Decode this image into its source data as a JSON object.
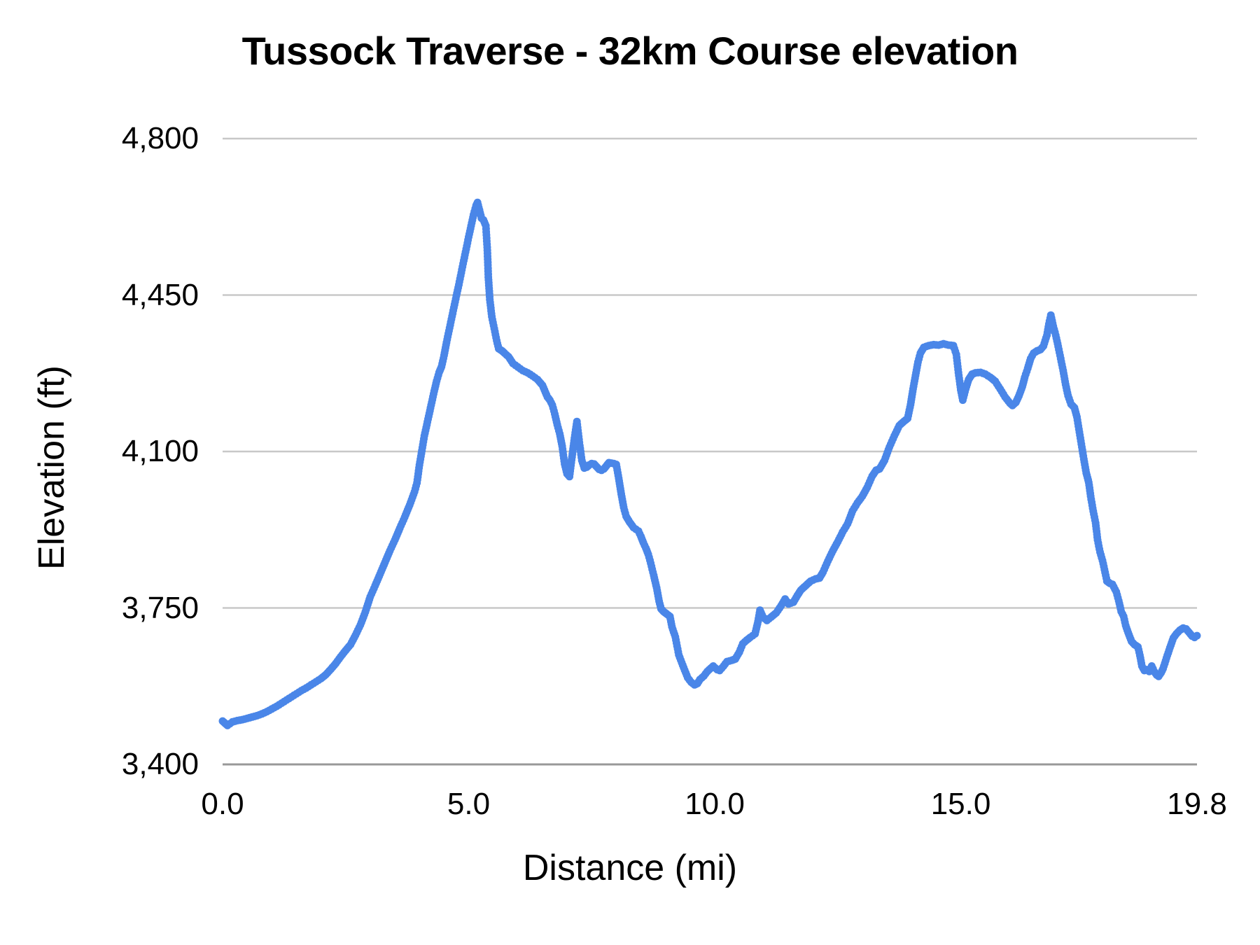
{
  "chart_data": {
    "type": "line",
    "title": "Tussock Traverse - 32km Course elevation",
    "xlabel": "Distance (mi)",
    "ylabel": "Elevation (ft)",
    "xlim": [
      0,
      19.8
    ],
    "ylim": [
      3400,
      4800
    ],
    "x_ticks": [
      0.0,
      5.0,
      10.0,
      15.0,
      19.8
    ],
    "x_tick_labels": [
      "0.0",
      "5.0",
      "10.0",
      "15.0",
      "19.8"
    ],
    "y_ticks": [
      3400,
      3750,
      4100,
      4450,
      4800
    ],
    "y_tick_labels": [
      "3,400",
      "3,750",
      "4,100",
      "4,450",
      "4,800"
    ],
    "grid": "horizontal",
    "legend": "none",
    "marker": "circle",
    "line_color": "#4a86e8",
    "grid_color": "#c8c8c8",
    "axis_color": "#989898",
    "text_color": "#000000",
    "series": [
      {
        "name": "Elevation",
        "points": [
          [
            0.0,
            3497
          ],
          [
            0.05,
            3492
          ],
          [
            0.1,
            3487
          ],
          [
            0.15,
            3491
          ],
          [
            0.2,
            3495
          ],
          [
            0.3,
            3498
          ],
          [
            0.4,
            3500
          ],
          [
            0.5,
            3503
          ],
          [
            0.6,
            3506
          ],
          [
            0.7,
            3509
          ],
          [
            0.8,
            3513
          ],
          [
            0.9,
            3518
          ],
          [
            1.0,
            3524
          ],
          [
            1.1,
            3530
          ],
          [
            1.2,
            3537
          ],
          [
            1.3,
            3544
          ],
          [
            1.4,
            3551
          ],
          [
            1.5,
            3558
          ],
          [
            1.6,
            3565
          ],
          [
            1.7,
            3571
          ],
          [
            1.8,
            3578
          ],
          [
            1.9,
            3585
          ],
          [
            2.0,
            3592
          ],
          [
            2.1,
            3601
          ],
          [
            2.2,
            3613
          ],
          [
            2.3,
            3626
          ],
          [
            2.4,
            3641
          ],
          [
            2.5,
            3655
          ],
          [
            2.6,
            3668
          ],
          [
            2.7,
            3689
          ],
          [
            2.8,
            3712
          ],
          [
            2.9,
            3741
          ],
          [
            3.0,
            3775
          ],
          [
            3.1,
            3800
          ],
          [
            3.2,
            3826
          ],
          [
            3.3,
            3852
          ],
          [
            3.4,
            3878
          ],
          [
            3.5,
            3902
          ],
          [
            3.6,
            3928
          ],
          [
            3.7,
            3953
          ],
          [
            3.8,
            3980
          ],
          [
            3.9,
            4010
          ],
          [
            3.95,
            4030
          ],
          [
            4.0,
            4070
          ],
          [
            4.05,
            4102
          ],
          [
            4.1,
            4135
          ],
          [
            4.15,
            4160
          ],
          [
            4.2,
            4185
          ],
          [
            4.25,
            4210
          ],
          [
            4.3,
            4235
          ],
          [
            4.35,
            4258
          ],
          [
            4.4,
            4277
          ],
          [
            4.45,
            4290
          ],
          [
            4.5,
            4315
          ],
          [
            4.55,
            4344
          ],
          [
            4.6,
            4370
          ],
          [
            4.65,
            4396
          ],
          [
            4.7,
            4422
          ],
          [
            4.75,
            4448
          ],
          [
            4.8,
            4473
          ],
          [
            4.85,
            4500
          ],
          [
            4.9,
            4527
          ],
          [
            4.95,
            4553
          ],
          [
            5.0,
            4580
          ],
          [
            5.05,
            4605
          ],
          [
            5.1,
            4630
          ],
          [
            5.15,
            4650
          ],
          [
            5.18,
            4657
          ],
          [
            5.22,
            4640
          ],
          [
            5.26,
            4622
          ],
          [
            5.3,
            4618
          ],
          [
            5.35,
            4605
          ],
          [
            5.38,
            4550
          ],
          [
            5.4,
            4490
          ],
          [
            5.43,
            4440
          ],
          [
            5.47,
            4402
          ],
          [
            5.52,
            4375
          ],
          [
            5.57,
            4348
          ],
          [
            5.61,
            4330
          ],
          [
            5.68,
            4325
          ],
          [
            5.73,
            4320
          ],
          [
            5.81,
            4312
          ],
          [
            5.9,
            4297
          ],
          [
            6.0,
            4289
          ],
          [
            6.1,
            4281
          ],
          [
            6.2,
            4276
          ],
          [
            6.3,
            4269
          ],
          [
            6.4,
            4261
          ],
          [
            6.5,
            4248
          ],
          [
            6.6,
            4222
          ],
          [
            6.65,
            4215
          ],
          [
            6.7,
            4204
          ],
          [
            6.75,
            4184
          ],
          [
            6.8,
            4160
          ],
          [
            6.85,
            4140
          ],
          [
            6.9,
            4112
          ],
          [
            6.95,
            4072
          ],
          [
            7.0,
            4050
          ],
          [
            7.05,
            4044
          ],
          [
            7.1,
            4088
          ],
          [
            7.15,
            4130
          ],
          [
            7.2,
            4167
          ],
          [
            7.25,
            4120
          ],
          [
            7.3,
            4080
          ],
          [
            7.35,
            4063
          ],
          [
            7.4,
            4065
          ],
          [
            7.45,
            4070
          ],
          [
            7.5,
            4073
          ],
          [
            7.55,
            4072
          ],
          [
            7.6,
            4066
          ],
          [
            7.65,
            4060
          ],
          [
            7.7,
            4058
          ],
          [
            7.75,
            4061
          ],
          [
            7.8,
            4068
          ],
          [
            7.85,
            4075
          ],
          [
            7.9,
            4074
          ],
          [
            7.95,
            4073
          ],
          [
            8.0,
            4071
          ],
          [
            8.05,
            4040
          ],
          [
            8.1,
            4005
          ],
          [
            8.15,
            3975
          ],
          [
            8.2,
            3955
          ],
          [
            8.27,
            3942
          ],
          [
            8.35,
            3930
          ],
          [
            8.45,
            3922
          ],
          [
            8.5,
            3910
          ],
          [
            8.55,
            3896
          ],
          [
            8.6,
            3884
          ],
          [
            8.65,
            3870
          ],
          [
            8.7,
            3850
          ],
          [
            8.76,
            3823
          ],
          [
            8.82,
            3795
          ],
          [
            8.87,
            3765
          ],
          [
            8.91,
            3748
          ],
          [
            8.96,
            3742
          ],
          [
            9.02,
            3737
          ],
          [
            9.09,
            3731
          ],
          [
            9.13,
            3708
          ],
          [
            9.2,
            3685
          ],
          [
            9.27,
            3645
          ],
          [
            9.35,
            3622
          ],
          [
            9.45,
            3594
          ],
          [
            9.52,
            3584
          ],
          [
            9.59,
            3578
          ],
          [
            9.65,
            3581
          ],
          [
            9.7,
            3590
          ],
          [
            9.78,
            3598
          ],
          [
            9.85,
            3608
          ],
          [
            9.92,
            3615
          ],
          [
            9.97,
            3620
          ],
          [
            10.05,
            3612
          ],
          [
            10.1,
            3610
          ],
          [
            10.18,
            3620
          ],
          [
            10.25,
            3630
          ],
          [
            10.35,
            3633
          ],
          [
            10.42,
            3636
          ],
          [
            10.5,
            3651
          ],
          [
            10.57,
            3670
          ],
          [
            10.65,
            3678
          ],
          [
            10.72,
            3684
          ],
          [
            10.82,
            3692
          ],
          [
            10.88,
            3720
          ],
          [
            10.92,
            3745
          ],
          [
            10.98,
            3730
          ],
          [
            11.06,
            3722
          ],
          [
            11.15,
            3730
          ],
          [
            11.25,
            3739
          ],
          [
            11.35,
            3755
          ],
          [
            11.43,
            3770
          ],
          [
            11.5,
            3759
          ],
          [
            11.6,
            3763
          ],
          [
            11.68,
            3778
          ],
          [
            11.75,
            3790
          ],
          [
            11.85,
            3800
          ],
          [
            11.95,
            3810
          ],
          [
            12.05,
            3815
          ],
          [
            12.13,
            3817
          ],
          [
            12.2,
            3830
          ],
          [
            12.3,
            3855
          ],
          [
            12.4,
            3878
          ],
          [
            12.5,
            3898
          ],
          [
            12.6,
            3920
          ],
          [
            12.7,
            3938
          ],
          [
            12.8,
            3967
          ],
          [
            12.9,
            3985
          ],
          [
            13.0,
            4000
          ],
          [
            13.1,
            4020
          ],
          [
            13.2,
            4045
          ],
          [
            13.28,
            4058
          ],
          [
            13.35,
            4061
          ],
          [
            13.45,
            4080
          ],
          [
            13.55,
            4110
          ],
          [
            13.65,
            4135
          ],
          [
            13.75,
            4158
          ],
          [
            13.85,
            4168
          ],
          [
            13.92,
            4174
          ],
          [
            13.98,
            4205
          ],
          [
            14.03,
            4240
          ],
          [
            14.08,
            4270
          ],
          [
            14.13,
            4300
          ],
          [
            14.18,
            4320
          ],
          [
            14.25,
            4333
          ],
          [
            14.35,
            4337
          ],
          [
            14.45,
            4339
          ],
          [
            14.55,
            4338
          ],
          [
            14.65,
            4341
          ],
          [
            14.75,
            4338
          ],
          [
            14.85,
            4337
          ],
          [
            14.91,
            4317
          ],
          [
            14.96,
            4270
          ],
          [
            15.0,
            4238
          ],
          [
            15.04,
            4215
          ],
          [
            15.1,
            4240
          ],
          [
            15.16,
            4261
          ],
          [
            15.23,
            4273
          ],
          [
            15.3,
            4276
          ],
          [
            15.4,
            4277
          ],
          [
            15.5,
            4273
          ],
          [
            15.6,
            4266
          ],
          [
            15.7,
            4257
          ],
          [
            15.8,
            4240
          ],
          [
            15.9,
            4222
          ],
          [
            16.0,
            4208
          ],
          [
            16.05,
            4203
          ],
          [
            16.12,
            4210
          ],
          [
            16.18,
            4224
          ],
          [
            16.25,
            4245
          ],
          [
            16.3,
            4266
          ],
          [
            16.36,
            4286
          ],
          [
            16.42,
            4308
          ],
          [
            16.48,
            4320
          ],
          [
            16.55,
            4325
          ],
          [
            16.62,
            4328
          ],
          [
            16.68,
            4336
          ],
          [
            16.75,
            4360
          ],
          [
            16.79,
            4385
          ],
          [
            16.83,
            4405
          ],
          [
            16.88,
            4380
          ],
          [
            16.93,
            4360
          ],
          [
            16.98,
            4335
          ],
          [
            17.03,
            4308
          ],
          [
            17.08,
            4281
          ],
          [
            17.13,
            4250
          ],
          [
            17.18,
            4225
          ],
          [
            17.24,
            4206
          ],
          [
            17.31,
            4198
          ],
          [
            17.36,
            4177
          ],
          [
            17.4,
            4150
          ],
          [
            17.46,
            4110
          ],
          [
            17.5,
            4083
          ],
          [
            17.55,
            4052
          ],
          [
            17.6,
            4031
          ],
          [
            17.64,
            4000
          ],
          [
            17.68,
            3973
          ],
          [
            17.74,
            3940
          ],
          [
            17.78,
            3902
          ],
          [
            17.83,
            3875
          ],
          [
            17.88,
            3856
          ],
          [
            17.92,
            3836
          ],
          [
            17.97,
            3810
          ],
          [
            18.03,
            3805
          ],
          [
            18.08,
            3803
          ],
          [
            18.16,
            3786
          ],
          [
            18.21,
            3766
          ],
          [
            18.26,
            3742
          ],
          [
            18.31,
            3731
          ],
          [
            18.35,
            3711
          ],
          [
            18.4,
            3695
          ],
          [
            18.47,
            3675
          ],
          [
            18.53,
            3668
          ],
          [
            18.6,
            3663
          ],
          [
            18.64,
            3644
          ],
          [
            18.68,
            3620
          ],
          [
            18.73,
            3610
          ],
          [
            18.78,
            3612
          ],
          [
            18.83,
            3608
          ],
          [
            18.88,
            3620
          ],
          [
            18.93,
            3608
          ],
          [
            18.98,
            3600
          ],
          [
            19.02,
            3597
          ],
          [
            19.07,
            3605
          ],
          [
            19.11,
            3614
          ],
          [
            19.18,
            3638
          ],
          [
            19.25,
            3661
          ],
          [
            19.32,
            3683
          ],
          [
            19.38,
            3692
          ],
          [
            19.45,
            3700
          ],
          [
            19.52,
            3705
          ],
          [
            19.58,
            3703
          ],
          [
            19.64,
            3695
          ],
          [
            19.7,
            3687
          ],
          [
            19.75,
            3684
          ],
          [
            19.8,
            3688
          ]
        ]
      }
    ]
  }
}
